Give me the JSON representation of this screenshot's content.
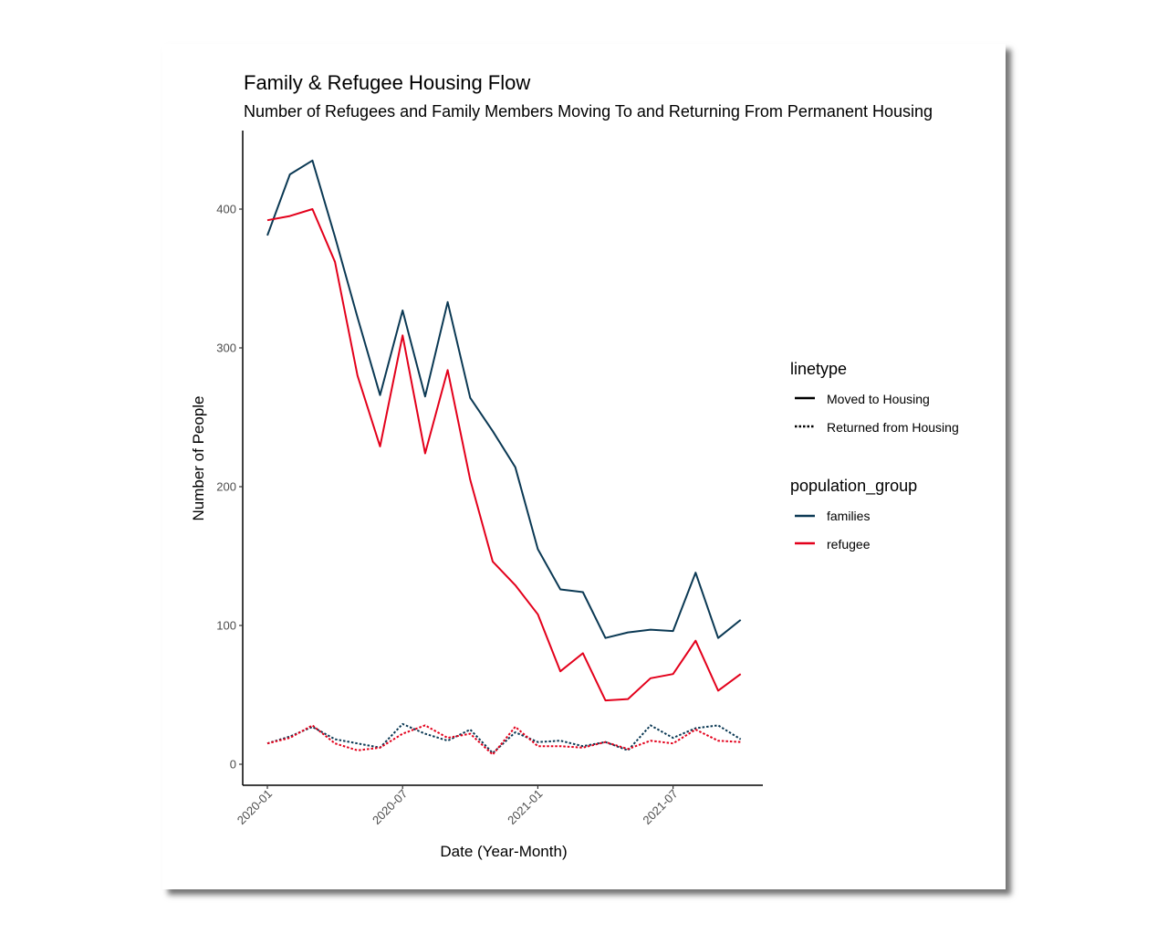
{
  "chart_data": {
    "type": "line",
    "title": "Family & Refugee Housing Flow",
    "subtitle": "Number of Refugees and Family Members Moving To and Returning From Permanent Housing",
    "xlabel": "Date (Year-Month)",
    "ylabel": "Number of People",
    "x": [
      "2020-01",
      "2020-02",
      "2020-03",
      "2020-04",
      "2020-05",
      "2020-06",
      "2020-07",
      "2020-08",
      "2020-09",
      "2020-10",
      "2020-11",
      "2020-12",
      "2021-01",
      "2021-02",
      "2021-03",
      "2021-04",
      "2021-05",
      "2021-06",
      "2021-07",
      "2021-08",
      "2021-09",
      "2021-10"
    ],
    "x_ticks": [
      "2020-01",
      "2020-07",
      "2021-01",
      "2021-07"
    ],
    "y_ticks": [
      0,
      100,
      200,
      300,
      400
    ],
    "ylim": [
      0,
      455
    ],
    "grid": false,
    "series": [
      {
        "group": "families",
        "linetype": "Moved to Housing",
        "color": "#0b3954",
        "dash": "solid",
        "values": [
          381,
          425,
          435,
          380,
          322,
          266,
          327,
          265,
          333,
          264,
          240,
          214,
          155,
          126,
          124,
          91,
          95,
          97,
          96,
          138,
          91,
          104
        ]
      },
      {
        "group": "refugee",
        "linetype": "Moved to Housing",
        "color": "#e3001b",
        "dash": "solid",
        "values": [
          392,
          395,
          400,
          362,
          280,
          229,
          309,
          224,
          284,
          205,
          146,
          129,
          108,
          67,
          80,
          46,
          47,
          62,
          65,
          89,
          53,
          65
        ]
      },
      {
        "group": "families",
        "linetype": "Returned from Housing",
        "color": "#0b3954",
        "dash": "dotted",
        "values": [
          15,
          20,
          27,
          18,
          15,
          12,
          29,
          22,
          17,
          25,
          8,
          23,
          16,
          17,
          13,
          16,
          10,
          28,
          19,
          26,
          28,
          18
        ]
      },
      {
        "group": "refugee",
        "linetype": "Returned from Housing",
        "color": "#e3001b",
        "dash": "dotted",
        "values": [
          15,
          19,
          28,
          15,
          10,
          12,
          22,
          28,
          19,
          22,
          7,
          27,
          13,
          13,
          12,
          16,
          11,
          17,
          15,
          25,
          17,
          16
        ]
      }
    ],
    "legend": {
      "position": "right",
      "linetype": {
        "title": "linetype",
        "items": [
          {
            "label": "Moved to Housing",
            "dash": "solid"
          },
          {
            "label": "Returned from Housing",
            "dash": "dotted"
          }
        ]
      },
      "population_group": {
        "title": "population_group",
        "items": [
          {
            "label": "families",
            "color": "#0b3954"
          },
          {
            "label": "refugee",
            "color": "#e3001b"
          }
        ]
      }
    }
  }
}
